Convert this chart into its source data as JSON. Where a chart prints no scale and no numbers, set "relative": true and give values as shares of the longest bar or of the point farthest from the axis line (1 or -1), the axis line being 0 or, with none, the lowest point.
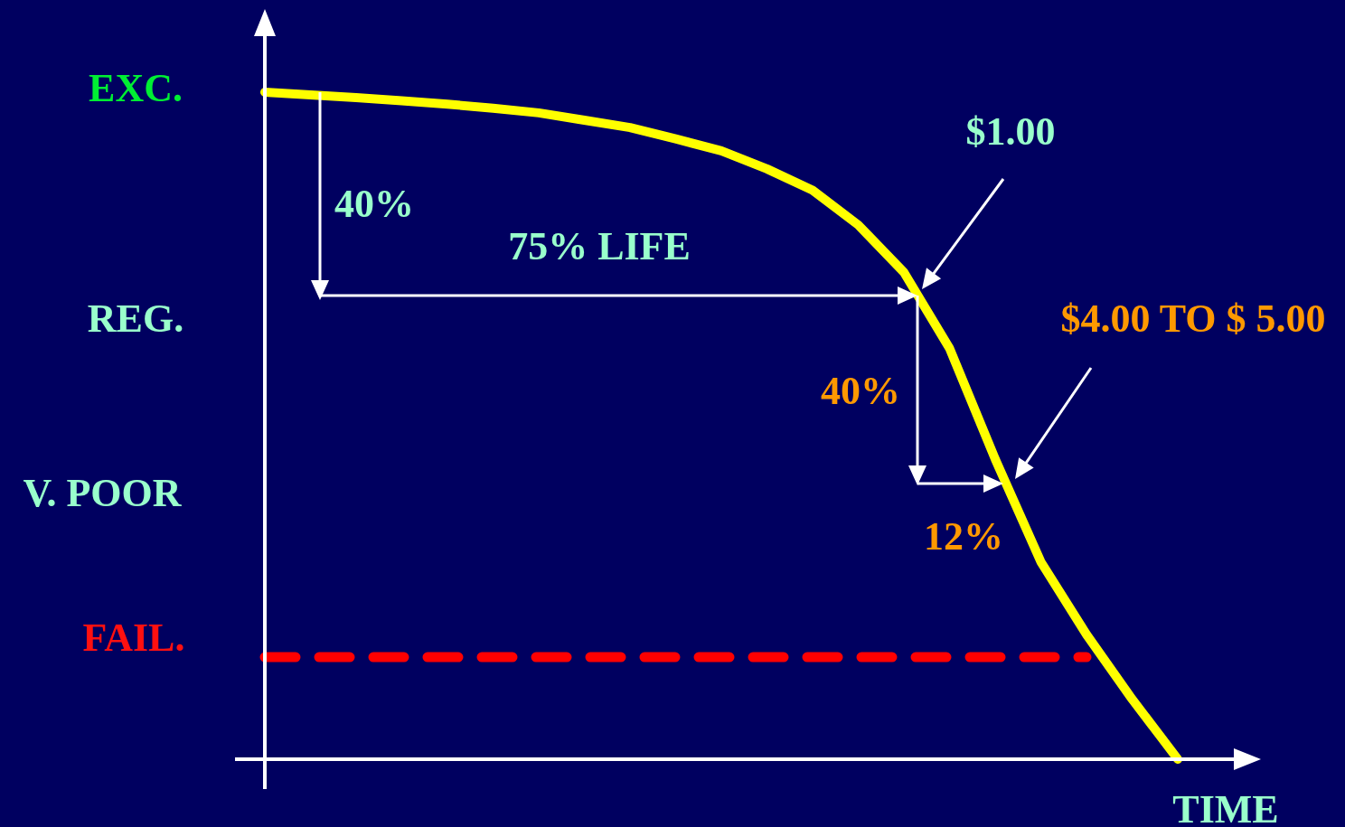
{
  "chart_data": {
    "type": "line",
    "relative": true,
    "xlabel": "TIME",
    "grid": false,
    "marker": "none",
    "categories": [
      null,
      null,
      null,
      null,
      null,
      null,
      null,
      null,
      null,
      null,
      null,
      null,
      null,
      null,
      null,
      null,
      null,
      null,
      null,
      null,
      null
    ],
    "series": [
      {
        "color": "#ffff00",
        "line_style": "solid",
        "values": [
          1.0,
          0.996,
          0.992,
          0.987,
          0.982,
          0.976,
          0.969,
          0.958,
          0.947,
          0.93,
          0.912,
          0.885,
          0.853,
          0.801,
          0.73,
          0.616,
          0.45,
          0.296,
          0.187,
          0.09,
          0
        ]
      },
      {
        "color": "#ff0000",
        "line_style": "dashed",
        "values": [
          0.153,
          0.153,
          0.153,
          0.153,
          0.153,
          0.153,
          0.153,
          0.153,
          0.153,
          0.153,
          0.153,
          0.153,
          0.153,
          0.153,
          0.153,
          0.153,
          0.153,
          0.153,
          0.153,
          null,
          null
        ]
      }
    ],
    "annotations": [
      "EXC.",
      "REG.",
      "V. POOR",
      "FAIL.",
      "40%",
      "75% LIFE",
      "$1.00",
      "$4.00 TO $ 5.00",
      "40%",
      "12%"
    ]
  }
}
